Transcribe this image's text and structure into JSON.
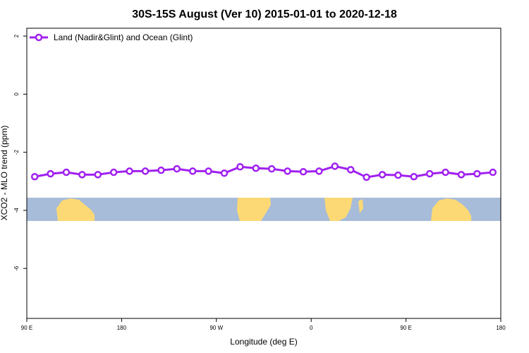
{
  "chart_data": {
    "type": "line",
    "title": "30S-15S August (Ver 10)   2015-01-01 to 2020-12-18",
    "x_label": "Longitude (deg E)",
    "y_label": "XCO2 - MLO trend (ppm)",
    "x": [
      97.5,
      112.5,
      127.5,
      142.5,
      157.5,
      172.5,
      187.5,
      202.5,
      217.5,
      232.5,
      247.5,
      262.5,
      277.5,
      292.5,
      307.5,
      322.5,
      337.5,
      352.5,
      367.5,
      382.5,
      397.5,
      412.5,
      427.5,
      442.5,
      457.5,
      472.5,
      487.5,
      502.5,
      517.5,
      532.5
    ],
    "series": [
      {
        "name": "Land (Nadir&Glint) and Ocean (Glint)",
        "color": "#a020f0",
        "values": [
          -2.84,
          -2.74,
          -2.69,
          -2.77,
          -2.77,
          -2.69,
          -2.65,
          -2.65,
          -2.62,
          -2.57,
          -2.65,
          -2.65,
          -2.72,
          -2.5,
          -2.55,
          -2.57,
          -2.65,
          -2.67,
          -2.65,
          -2.48,
          -2.6,
          -2.86,
          -2.77,
          -2.79,
          -2.84,
          -2.74,
          -2.69,
          -2.77,
          -2.74,
          -2.69
        ]
      }
    ],
    "xlim": [
      90,
      540
    ],
    "xticks": [
      {
        "value": 90,
        "label": "90 E"
      },
      {
        "value": 180,
        "label": "180"
      },
      {
        "value": 270,
        "label": "90 W"
      },
      {
        "value": 360,
        "label": "0"
      },
      {
        "value": 450,
        "label": "90 E"
      },
      {
        "value": 540,
        "label": "180"
      }
    ],
    "ylim": [
      -7.72,
      2.27
    ],
    "yticks": [
      2,
      0,
      -2,
      -4,
      -6
    ],
    "legend": "top-left"
  }
}
